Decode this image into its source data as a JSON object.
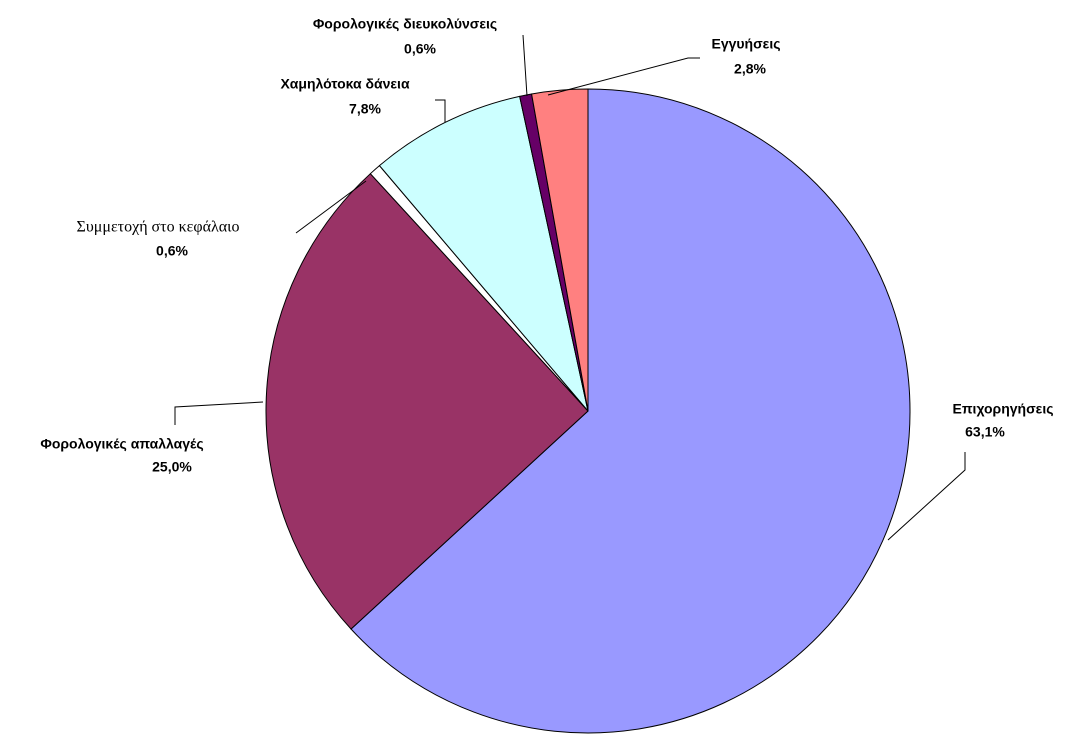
{
  "chart_data": {
    "type": "pie",
    "categories": [
      "Επιχορηγήσεις",
      "Φορολογικές απαλλαγές",
      "Συμμετοχή στο κεφάλαιο",
      "Χαμηλότοκα δάνεια",
      "Φορολογικές διευκολύνσεις",
      "Εγγυήσεις"
    ],
    "values": [
      63.1,
      25.0,
      0.6,
      7.8,
      0.6,
      2.8
    ],
    "value_labels": [
      "63,1%",
      "25,0%",
      "0,6%",
      "7,8%",
      "0,6%",
      "2,8%"
    ],
    "colors": [
      "#9999ff",
      "#993366",
      "#ffffff",
      "#ccffff",
      "#660066",
      "#ff8080"
    ]
  }
}
